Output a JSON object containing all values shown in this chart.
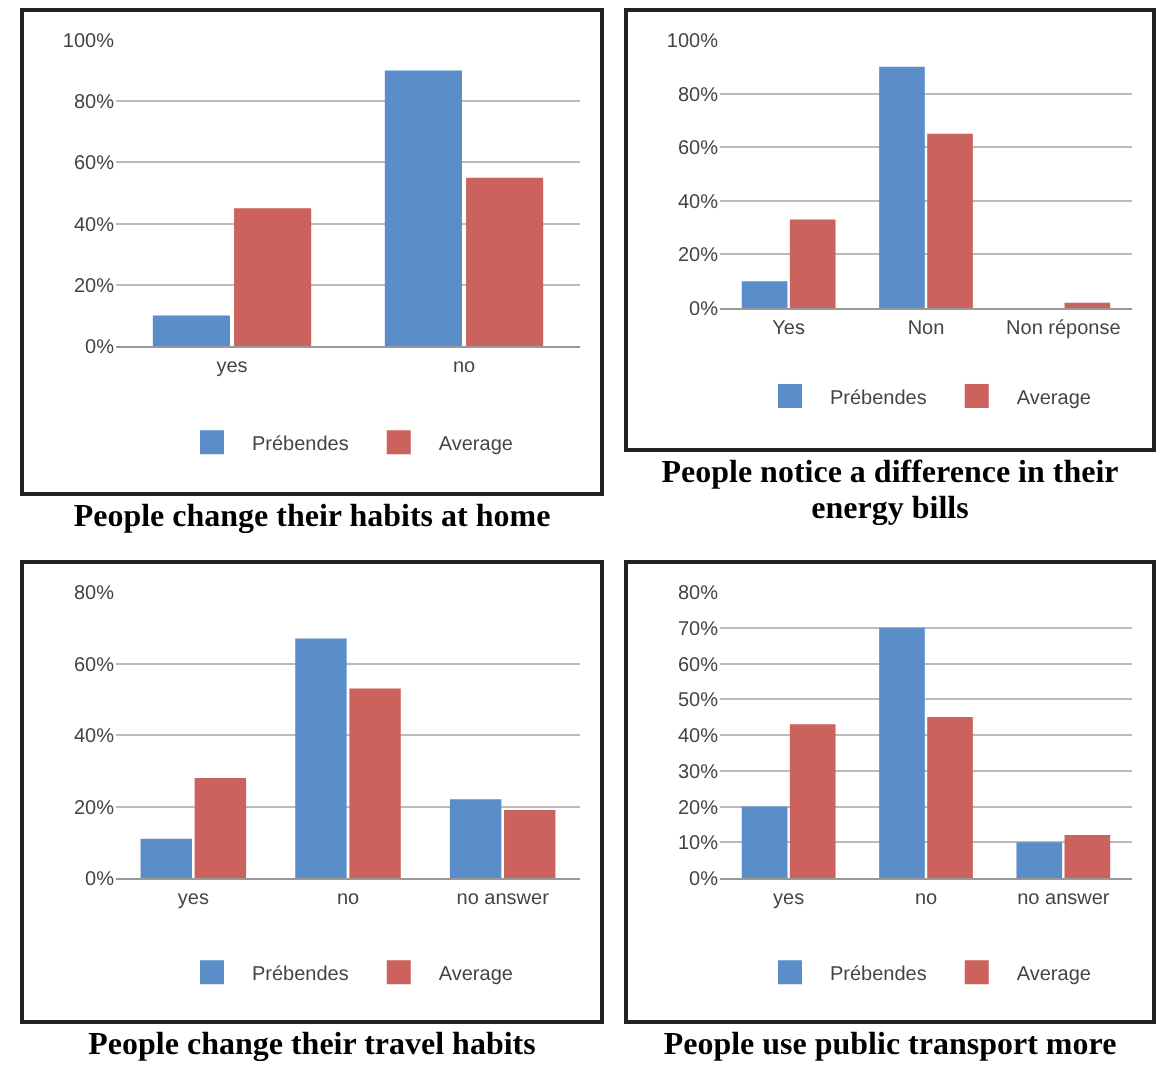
{
  "chart_data": [
    {
      "type": "bar",
      "title": "People change their habits at home",
      "categories": [
        "yes",
        "no"
      ],
      "series": [
        {
          "name": "Prébendes",
          "color": "#5b8ec8",
          "values": [
            10,
            90
          ]
        },
        {
          "name": "Average",
          "color": "#cc625d",
          "values": [
            45,
            55
          ]
        }
      ],
      "ylim": [
        0,
        100
      ],
      "yticks": [
        {
          "value": 0,
          "label": "0%"
        },
        {
          "value": 20,
          "label": "20%"
        },
        {
          "value": 40,
          "label": "40%"
        },
        {
          "value": 60,
          "label": "60%"
        },
        {
          "value": 80,
          "label": "80%"
        },
        {
          "value": 100,
          "label": "100%"
        }
      ],
      "grid": "y",
      "legend": "bottom"
    },
    {
      "type": "bar",
      "title": "People notice a difference in their energy bills",
      "categories": [
        "Yes",
        "Non",
        "Non réponse"
      ],
      "series": [
        {
          "name": "Prébendes",
          "color": "#5b8ec8",
          "values": [
            10,
            90,
            0
          ]
        },
        {
          "name": "Average",
          "color": "#cc625d",
          "values": [
            33,
            65,
            2
          ]
        }
      ],
      "ylim": [
        0,
        100
      ],
      "yticks": [
        {
          "value": 0,
          "label": "0%"
        },
        {
          "value": 20,
          "label": "20%"
        },
        {
          "value": 40,
          "label": "40%"
        },
        {
          "value": 60,
          "label": "60%"
        },
        {
          "value": 80,
          "label": "80%"
        },
        {
          "value": 100,
          "label": "100%"
        }
      ],
      "grid": "y",
      "legend": "bottom"
    },
    {
      "type": "bar",
      "title": "People change their travel habits",
      "categories": [
        "yes",
        "no",
        "no answer"
      ],
      "series": [
        {
          "name": "Prébendes",
          "color": "#5b8ec8",
          "values": [
            11,
            67,
            22
          ]
        },
        {
          "name": "Average",
          "color": "#cc625d",
          "values": [
            28,
            53,
            19
          ]
        }
      ],
      "ylim": [
        0,
        80
      ],
      "yticks": [
        {
          "value": 0,
          "label": "0%"
        },
        {
          "value": 20,
          "label": "20%"
        },
        {
          "value": 40,
          "label": "40%"
        },
        {
          "value": 60,
          "label": "60%"
        },
        {
          "value": 80,
          "label": "80%"
        }
      ],
      "grid": "y",
      "legend": "bottom"
    },
    {
      "type": "bar",
      "title": "People use public transport more",
      "categories": [
        "yes",
        "no",
        "no answer"
      ],
      "series": [
        {
          "name": "Prébendes",
          "color": "#5b8ec8",
          "values": [
            20,
            70,
            10
          ]
        },
        {
          "name": "Average",
          "color": "#cc625d",
          "values": [
            43,
            45,
            12
          ]
        }
      ],
      "ylim": [
        0,
        80
      ],
      "yticks": [
        {
          "value": 0,
          "label": "0%"
        },
        {
          "value": 10,
          "label": "10%"
        },
        {
          "value": 20,
          "label": "20%"
        },
        {
          "value": 30,
          "label": "30%"
        },
        {
          "value": 40,
          "label": "40%"
        },
        {
          "value": 50,
          "label": "50%"
        },
        {
          "value": 60,
          "label": "60%"
        },
        {
          "value": 70,
          "label": "70%"
        },
        {
          "value": 80,
          "label": "80%"
        }
      ],
      "grid": "y",
      "legend": "bottom"
    }
  ]
}
